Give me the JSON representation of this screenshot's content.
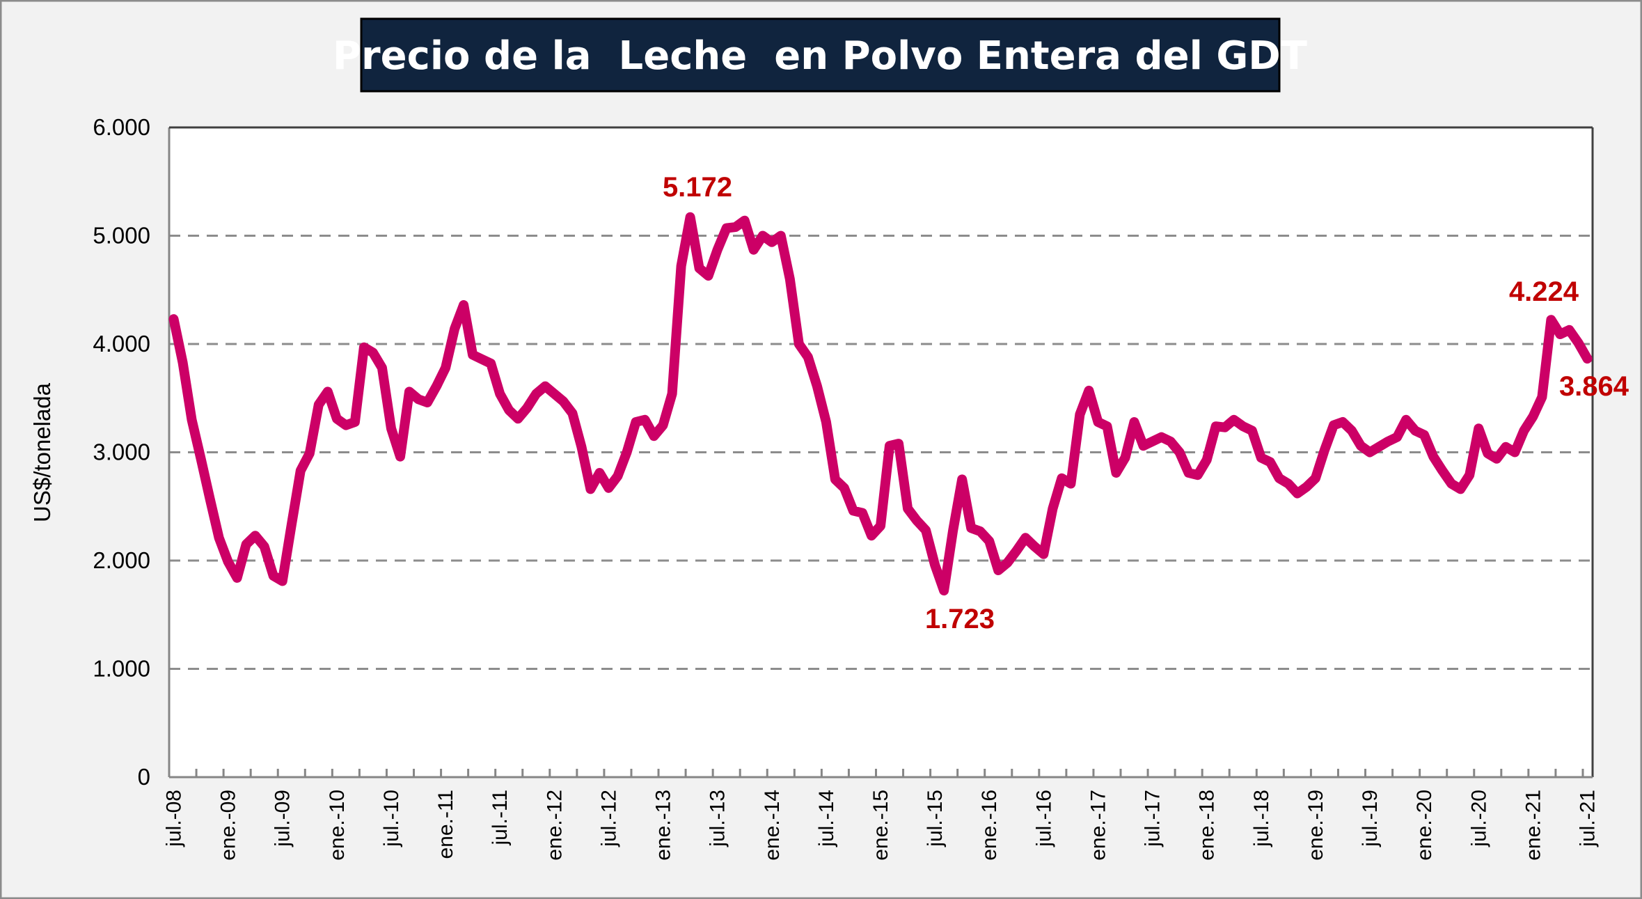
{
  "chart_data": {
    "type": "line",
    "title": "Precio de la  Leche  en Polvo Entera del GDT",
    "xlabel": "",
    "ylabel": "US$/tonelada",
    "ylim": [
      0,
      6000
    ],
    "y_ticks": [
      0,
      1000,
      2000,
      3000,
      4000,
      5000,
      6000
    ],
    "y_tick_labels": [
      "0",
      "1.000",
      "2.000",
      "3.000",
      "4.000",
      "5.000",
      "6.000"
    ],
    "grid": "horizontal dashed",
    "x_tick_labels": [
      "jul.-08",
      "ene.-09",
      "jul.-09",
      "ene.-10",
      "jul.-10",
      "ene.-11",
      "jul.-11",
      "ene.-12",
      "jul.-12",
      "ene.-13",
      "jul.-13",
      "ene.-14",
      "jul.-14",
      "ene.-15",
      "jul.-15",
      "ene.-16",
      "jul.-16",
      "ene.-17",
      "jul.-17",
      "ene.-18",
      "jul.-18",
      "ene.-19",
      "jul.-19",
      "ene.-20",
      "jul.-20",
      "ene.-21",
      "jul.-21"
    ],
    "x_range_months": [
      0,
      156
    ],
    "series": [
      {
        "name": "Leche en Polvo Entera GDT",
        "color": "#cc0066",
        "values": [
          4230,
          3830,
          3300,
          2940,
          2570,
          2210,
          1990,
          1840,
          2150,
          2230,
          2130,
          1860,
          1810,
          2330,
          2830,
          2990,
          3440,
          3560,
          3310,
          3250,
          3280,
          3970,
          3920,
          3780,
          3220,
          2960,
          3560,
          3490,
          3460,
          3610,
          3780,
          4140,
          4360,
          3900,
          3860,
          3820,
          3540,
          3390,
          3310,
          3410,
          3540,
          3610,
          3540,
          3470,
          3360,
          3050,
          2660,
          2810,
          2670,
          2780,
          3000,
          3280,
          3300,
          3150,
          3250,
          3540,
          4720,
          5172,
          4700,
          4630,
          4870,
          5070,
          5080,
          5140,
          4870,
          5000,
          4940,
          5000,
          4600,
          4000,
          3880,
          3610,
          3280,
          2750,
          2670,
          2460,
          2440,
          2230,
          2320,
          3060,
          3080,
          2480,
          2370,
          2280,
          1960,
          1723,
          2280,
          2750,
          2300,
          2270,
          2180,
          1910,
          1980,
          2090,
          2210,
          2130,
          2060,
          2480,
          2760,
          2710,
          3350,
          3570,
          3280,
          3240,
          2810,
          2950,
          3280,
          3060,
          3100,
          3140,
          3100,
          3000,
          2810,
          2790,
          2930,
          3240,
          3230,
          3300,
          3240,
          3200,
          2950,
          2910,
          2760,
          2710,
          2620,
          2680,
          2760,
          3020,
          3250,
          3280,
          3200,
          3060,
          3000,
          3050,
          3100,
          3140,
          3300,
          3200,
          3160,
          2960,
          2830,
          2710,
          2660,
          2790,
          3220,
          2990,
          2940,
          3050,
          3000,
          3200,
          3330,
          3510,
          4224,
          4090,
          4130,
          4010,
          3864
        ]
      }
    ],
    "annotations": [
      {
        "text": "5.172",
        "value": 5172,
        "position": "above-peak"
      },
      {
        "text": "1.723",
        "value": 1723,
        "position": "below-trough"
      },
      {
        "text": "4.224",
        "value": 4224,
        "position": "above"
      },
      {
        "text": "3.864",
        "value": 3864,
        "position": "below-right"
      }
    ]
  }
}
